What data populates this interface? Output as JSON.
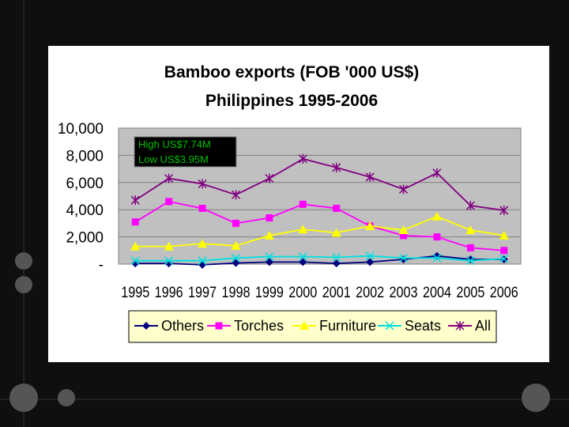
{
  "chart_data": {
    "type": "line",
    "title": "Bamboo exports (FOB '000 US$)",
    "subtitle": "Philippines 1995-2006",
    "x": [
      "1995",
      "1996",
      "1997",
      "1998",
      "1999",
      "2000",
      "2001",
      "2002",
      "2003",
      "2004",
      "2005",
      "2006"
    ],
    "y_ticks": [
      "10,000",
      "8,000",
      "6,000",
      "4,000",
      "2,000",
      "-"
    ],
    "ylim": [
      0,
      10000
    ],
    "grid": "horizontal",
    "legend_position": "bottom",
    "annotations": [
      "High US$7.74M",
      "Low US$3.95M"
    ],
    "series": [
      {
        "name": "Others",
        "color": "#000080",
        "marker": "diamond",
        "values": [
          50,
          50,
          -50,
          80,
          150,
          150,
          50,
          150,
          350,
          600,
          350,
          350
        ]
      },
      {
        "name": "Torches",
        "color": "#ff00ff",
        "marker": "square",
        "values": [
          3100,
          4600,
          4100,
          3000,
          3400,
          4400,
          4100,
          2800,
          2100,
          2000,
          1200,
          1000
        ]
      },
      {
        "name": "Furniture",
        "color": "#ffff00",
        "marker": "triangle",
        "values": [
          1300,
          1300,
          1500,
          1350,
          2100,
          2550,
          2300,
          2800,
          2500,
          3500,
          2500,
          2100
        ]
      },
      {
        "name": "Seats",
        "color": "#00e0e0",
        "marker": "x",
        "values": [
          250,
          250,
          250,
          450,
          550,
          550,
          500,
          600,
          450,
          450,
          250,
          400
        ]
      },
      {
        "name": "All",
        "color": "#800080",
        "marker": "asterisk",
        "values": [
          4700,
          6300,
          5900,
          5100,
          6300,
          7740,
          7100,
          6400,
          5500,
          6700,
          4300,
          3950
        ]
      }
    ]
  }
}
